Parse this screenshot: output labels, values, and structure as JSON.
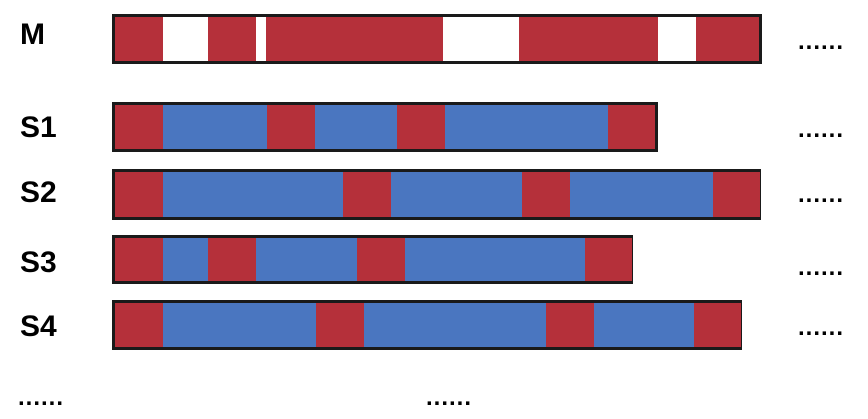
{
  "colors": {
    "red": "#b5303a",
    "blue": "#4a76c0",
    "white": "#ffffff",
    "border": "#1a1a1a"
  },
  "rows": [
    {
      "label": "M",
      "segments": [
        {
          "c": "red",
          "w": 48
        },
        {
          "c": "white",
          "w": 45
        },
        {
          "c": "red",
          "w": 48
        },
        {
          "c": "white",
          "w": 10
        },
        {
          "c": "red",
          "w": 177
        },
        {
          "c": "white",
          "w": 76
        },
        {
          "c": "red",
          "w": 139
        },
        {
          "c": "white",
          "w": 38
        },
        {
          "c": "red",
          "w": 63
        }
      ]
    },
    {
      "label": "S1",
      "segments": [
        {
          "c": "red",
          "w": 48
        },
        {
          "c": "blue",
          "w": 104
        },
        {
          "c": "red",
          "w": 48
        },
        {
          "c": "blue",
          "w": 82
        },
        {
          "c": "red",
          "w": 48
        },
        {
          "c": "blue",
          "w": 163
        },
        {
          "c": "red",
          "w": 47
        }
      ]
    },
    {
      "label": "S2",
      "segments": [
        {
          "c": "red",
          "w": 48
        },
        {
          "c": "blue",
          "w": 180
        },
        {
          "c": "red",
          "w": 48
        },
        {
          "c": "blue",
          "w": 131
        },
        {
          "c": "red",
          "w": 48
        },
        {
          "c": "blue",
          "w": 143
        },
        {
          "c": "red",
          "w": 47
        }
      ]
    },
    {
      "label": "S3",
      "segments": [
        {
          "c": "red",
          "w": 48
        },
        {
          "c": "blue",
          "w": 45
        },
        {
          "c": "red",
          "w": 48
        },
        {
          "c": "blue",
          "w": 101
        },
        {
          "c": "red",
          "w": 48
        },
        {
          "c": "blue",
          "w": 180
        },
        {
          "c": "red",
          "w": 47
        }
      ]
    },
    {
      "label": "S4",
      "segments": [
        {
          "c": "red",
          "w": 48
        },
        {
          "c": "blue",
          "w": 153
        },
        {
          "c": "red",
          "w": 48
        },
        {
          "c": "blue",
          "w": 182
        },
        {
          "c": "red",
          "w": 48
        },
        {
          "c": "blue",
          "w": 100
        },
        {
          "c": "red",
          "w": 47
        }
      ]
    }
  ],
  "ellipsis": "......"
}
